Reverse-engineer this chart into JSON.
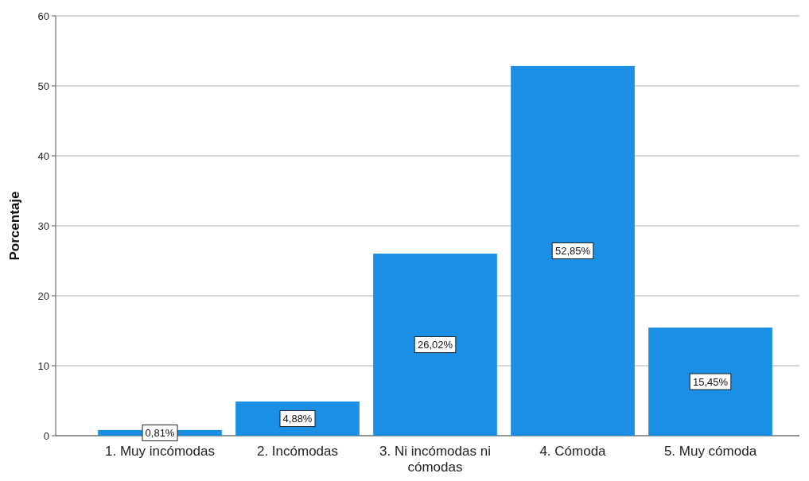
{
  "chart_data": {
    "type": "bar",
    "ylabel": "Porcentaje",
    "categories": [
      "1. Muy incómodas",
      "2. Incómodas",
      "3. Ni incómodas ni cómodas",
      "4. Cómoda",
      "5. Muy cómoda"
    ],
    "values": [
      0.81,
      4.88,
      26.02,
      52.85,
      15.45
    ],
    "value_labels": [
      "0,81%",
      "4,88%",
      "26,02%",
      "52,85%",
      "15,45%"
    ],
    "color": "#1a8fe3",
    "ylim": [
      0,
      60
    ],
    "yticks": [
      0,
      10,
      20,
      30,
      40,
      50,
      60
    ],
    "grid": "y"
  }
}
